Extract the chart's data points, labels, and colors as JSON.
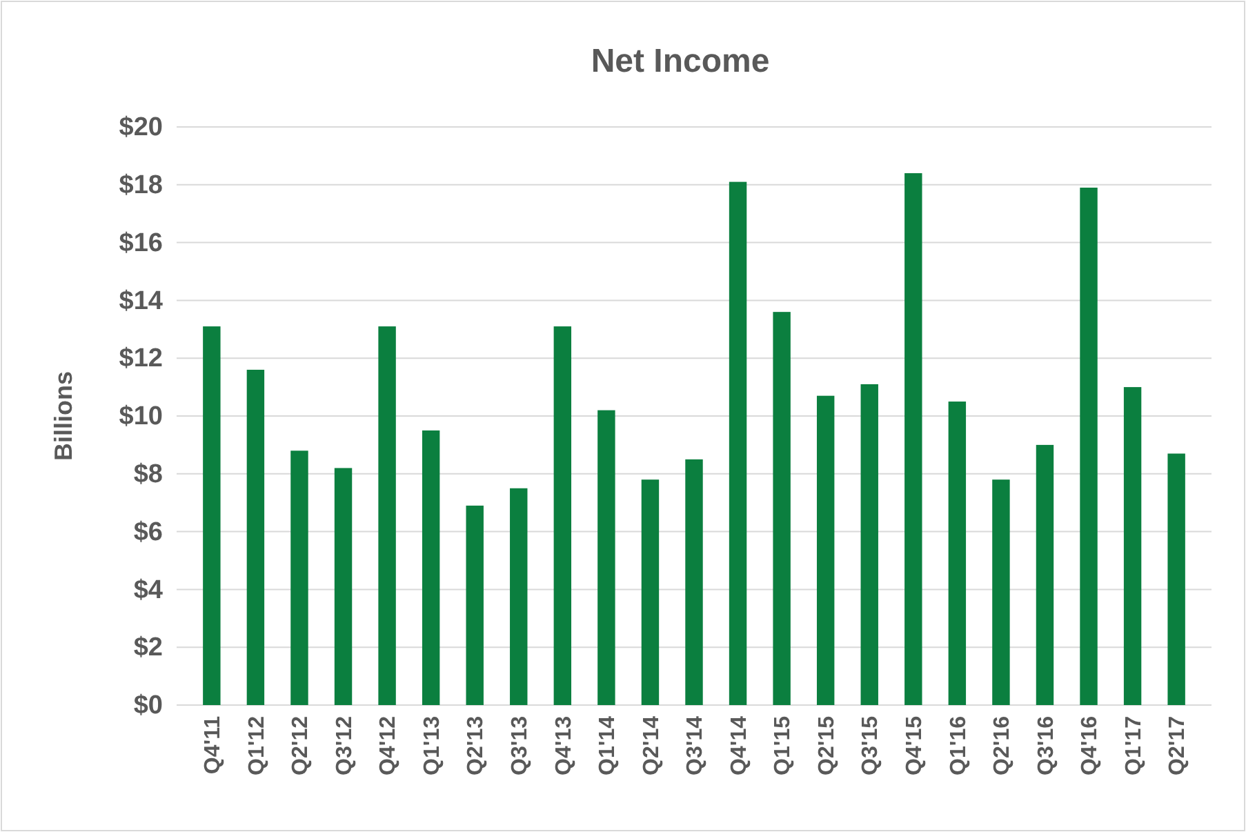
{
  "chart_data": {
    "type": "bar",
    "title": "Net Income",
    "ylabel": "Billions",
    "categories": [
      "Q4'11",
      "Q1'12",
      "Q2'12",
      "Q3'12",
      "Q4'12",
      "Q1'13",
      "Q2'13",
      "Q3'13",
      "Q4'13",
      "Q1'14",
      "Q2'14",
      "Q3'14",
      "Q4'14",
      "Q1'15",
      "Q2'15",
      "Q3'15",
      "Q4'15",
      "Q1'16",
      "Q2'16",
      "Q3'16",
      "Q4'16",
      "Q1'17",
      "Q2'17"
    ],
    "values": [
      13.1,
      11.6,
      8.8,
      8.2,
      13.1,
      9.5,
      6.9,
      7.5,
      13.1,
      10.2,
      7.8,
      8.5,
      18.1,
      13.6,
      10.7,
      11.1,
      18.4,
      10.5,
      7.8,
      9.0,
      17.9,
      11.0,
      8.7
    ],
    "color": "#0b7f3f",
    "ylim": [
      0,
      20
    ],
    "yticks": [
      {
        "value": 0,
        "label": "$0"
      },
      {
        "value": 2,
        "label": "$2"
      },
      {
        "value": 4,
        "label": "$4"
      },
      {
        "value": 6,
        "label": "$6"
      },
      {
        "value": 8,
        "label": "$8"
      },
      {
        "value": 10,
        "label": "$10"
      },
      {
        "value": 12,
        "label": "$12"
      },
      {
        "value": 14,
        "label": "$14"
      },
      {
        "value": 16,
        "label": "$16"
      },
      {
        "value": 18,
        "label": "$18"
      },
      {
        "value": 20,
        "label": "$20"
      }
    ],
    "grid": "y"
  }
}
